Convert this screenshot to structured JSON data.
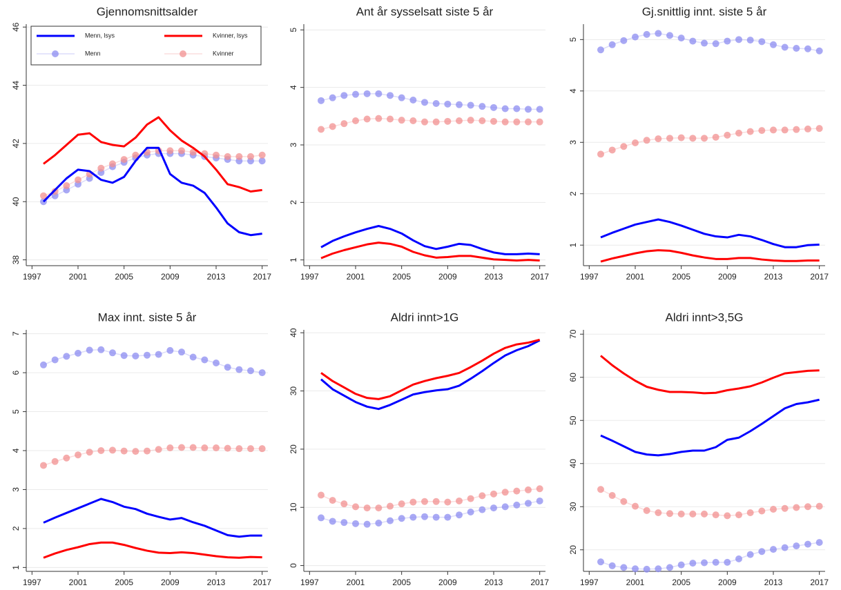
{
  "chart_data": [
    {
      "type": "line",
      "title": "Gjennomsnittsalder",
      "legend": "upper left",
      "x": [
        1998,
        1999,
        2000,
        2001,
        2002,
        2003,
        2004,
        2005,
        2006,
        2007,
        2008,
        2009,
        2010,
        2011,
        2012,
        2013,
        2014,
        2015,
        2016,
        2017
      ],
      "xlim": [
        1996.5,
        2017.5
      ],
      "xticks": [
        1997,
        2001,
        2005,
        2009,
        2013,
        2017
      ],
      "ylim": [
        37.8,
        46.1
      ],
      "yticks": [
        38,
        40,
        42,
        44,
        46
      ],
      "grid": true,
      "series": [
        {
          "name": "Menn, lsys",
          "color": "#0000ff",
          "values": [
            40.0,
            40.4,
            40.8,
            41.1,
            41.05,
            40.75,
            40.65,
            40.85,
            41.4,
            41.85,
            41.85,
            40.95,
            40.65,
            40.55,
            40.3,
            39.8,
            39.25,
            38.95,
            38.85,
            38.9
          ]
        },
        {
          "name": "Kvinner, lsys",
          "color": "#ff0000",
          "values": [
            41.3,
            41.6,
            41.95,
            42.3,
            42.35,
            42.05,
            41.95,
            41.9,
            42.2,
            42.65,
            42.9,
            42.45,
            42.1,
            41.85,
            41.55,
            41.1,
            40.6,
            40.5,
            40.35,
            40.4
          ]
        },
        {
          "name": "Menn",
          "color": "#8c8cf0",
          "marker": true,
          "values": [
            40.0,
            40.2,
            40.4,
            40.6,
            40.8,
            41.0,
            41.2,
            41.35,
            41.5,
            41.6,
            41.65,
            41.65,
            41.65,
            41.6,
            41.55,
            41.5,
            41.45,
            41.4,
            41.4,
            41.4
          ]
        },
        {
          "name": "Kvinner",
          "color": "#f29090",
          "marker": true,
          "values": [
            40.2,
            40.35,
            40.55,
            40.75,
            40.95,
            41.15,
            41.3,
            41.45,
            41.6,
            41.7,
            41.75,
            41.75,
            41.75,
            41.7,
            41.65,
            41.6,
            41.55,
            41.55,
            41.55,
            41.6
          ]
        }
      ]
    },
    {
      "type": "line",
      "title": "Ant år sysselsatt siste 5 år",
      "x": [
        1998,
        1999,
        2000,
        2001,
        2002,
        2003,
        2004,
        2005,
        2006,
        2007,
        2008,
        2009,
        2010,
        2011,
        2012,
        2013,
        2014,
        2015,
        2016,
        2017
      ],
      "xlim": [
        1996.5,
        2017.5
      ],
      "xticks": [
        1997,
        2001,
        2005,
        2009,
        2013,
        2017
      ],
      "ylim": [
        0.9,
        5.1
      ],
      "yticks": [
        1,
        2,
        3,
        4,
        5
      ],
      "grid": true,
      "series": [
        {
          "color": "#0000ff",
          "values": [
            1.22,
            1.33,
            1.41,
            1.48,
            1.54,
            1.59,
            1.54,
            1.46,
            1.34,
            1.24,
            1.19,
            1.23,
            1.28,
            1.26,
            1.19,
            1.13,
            1.1,
            1.1,
            1.11,
            1.1
          ]
        },
        {
          "color": "#ff0000",
          "values": [
            1.03,
            1.11,
            1.17,
            1.22,
            1.27,
            1.3,
            1.28,
            1.23,
            1.14,
            1.08,
            1.04,
            1.05,
            1.07,
            1.07,
            1.04,
            1.01,
            1.0,
            0.99,
            1.0,
            0.99
          ]
        },
        {
          "color": "#8c8cf0",
          "marker": true,
          "values": [
            3.77,
            3.82,
            3.86,
            3.88,
            3.89,
            3.89,
            3.86,
            3.82,
            3.78,
            3.74,
            3.72,
            3.71,
            3.7,
            3.69,
            3.67,
            3.65,
            3.63,
            3.63,
            3.62,
            3.62
          ]
        },
        {
          "color": "#f29090",
          "marker": true,
          "values": [
            3.27,
            3.32,
            3.37,
            3.42,
            3.45,
            3.46,
            3.45,
            3.43,
            3.42,
            3.4,
            3.4,
            3.41,
            3.42,
            3.43,
            3.42,
            3.41,
            3.4,
            3.4,
            3.4,
            3.4
          ]
        }
      ]
    },
    {
      "type": "line",
      "title": "Gj.snittlig innt. siste 5 år",
      "x": [
        1998,
        1999,
        2000,
        2001,
        2002,
        2003,
        2004,
        2005,
        2006,
        2007,
        2008,
        2009,
        2010,
        2011,
        2012,
        2013,
        2014,
        2015,
        2016,
        2017
      ],
      "xlim": [
        1996.5,
        2017.5
      ],
      "xticks": [
        1997,
        2001,
        2005,
        2009,
        2013,
        2017
      ],
      "ylim": [
        0.6,
        5.3
      ],
      "yticks": [
        1,
        2,
        3,
        4,
        5
      ],
      "grid": true,
      "series": [
        {
          "color": "#0000ff",
          "values": [
            1.15,
            1.24,
            1.32,
            1.4,
            1.45,
            1.5,
            1.45,
            1.38,
            1.3,
            1.22,
            1.17,
            1.15,
            1.2,
            1.17,
            1.1,
            1.02,
            0.96,
            0.96,
            1.0,
            1.01
          ]
        },
        {
          "color": "#ff0000",
          "values": [
            0.68,
            0.74,
            0.79,
            0.84,
            0.88,
            0.9,
            0.89,
            0.85,
            0.8,
            0.76,
            0.73,
            0.73,
            0.75,
            0.75,
            0.72,
            0.7,
            0.69,
            0.69,
            0.7,
            0.7
          ]
        },
        {
          "color": "#8c8cf0",
          "marker": true,
          "values": [
            4.8,
            4.9,
            4.98,
            5.05,
            5.1,
            5.12,
            5.08,
            5.03,
            4.97,
            4.93,
            4.92,
            4.97,
            5.0,
            4.99,
            4.96,
            4.9,
            4.85,
            4.83,
            4.82,
            4.78
          ]
        },
        {
          "color": "#f29090",
          "marker": true,
          "values": [
            2.77,
            2.85,
            2.92,
            2.99,
            3.04,
            3.07,
            3.08,
            3.09,
            3.08,
            3.08,
            3.1,
            3.14,
            3.18,
            3.21,
            3.23,
            3.24,
            3.24,
            3.25,
            3.26,
            3.27
          ]
        }
      ]
    },
    {
      "type": "line",
      "title": "Max innt. siste 5 år",
      "x": [
        1998,
        1999,
        2000,
        2001,
        2002,
        2003,
        2004,
        2005,
        2006,
        2007,
        2008,
        2009,
        2010,
        2011,
        2012,
        2013,
        2014,
        2015,
        2016,
        2017
      ],
      "xlim": [
        1996.5,
        2017.5
      ],
      "xticks": [
        1997,
        2001,
        2005,
        2009,
        2013,
        2017
      ],
      "ylim": [
        0.9,
        7.1
      ],
      "yticks": [
        1,
        2,
        3,
        4,
        5,
        6,
        7
      ],
      "grid": true,
      "series": [
        {
          "color": "#0000ff",
          "values": [
            2.15,
            2.28,
            2.4,
            2.52,
            2.64,
            2.76,
            2.68,
            2.56,
            2.5,
            2.38,
            2.3,
            2.23,
            2.27,
            2.16,
            2.07,
            1.95,
            1.83,
            1.79,
            1.82,
            1.82
          ]
        },
        {
          "color": "#ff0000",
          "values": [
            1.25,
            1.36,
            1.45,
            1.52,
            1.6,
            1.64,
            1.64,
            1.58,
            1.5,
            1.43,
            1.38,
            1.37,
            1.39,
            1.37,
            1.33,
            1.29,
            1.26,
            1.25,
            1.27,
            1.26
          ]
        },
        {
          "color": "#8c8cf0",
          "marker": true,
          "values": [
            6.2,
            6.33,
            6.42,
            6.5,
            6.58,
            6.59,
            6.51,
            6.44,
            6.43,
            6.45,
            6.47,
            6.57,
            6.53,
            6.4,
            6.33,
            6.25,
            6.14,
            6.08,
            6.05,
            6.0
          ]
        },
        {
          "color": "#f29090",
          "marker": true,
          "values": [
            3.62,
            3.72,
            3.81,
            3.89,
            3.96,
            4.0,
            4.01,
            3.99,
            3.98,
            3.99,
            4.03,
            4.07,
            4.08,
            4.08,
            4.07,
            4.07,
            4.06,
            4.05,
            4.05,
            4.05
          ]
        }
      ]
    },
    {
      "type": "line",
      "title": "Aldri innt>1G",
      "x": [
        1998,
        1999,
        2000,
        2001,
        2002,
        2003,
        2004,
        2005,
        2006,
        2007,
        2008,
        2009,
        2010,
        2011,
        2012,
        2013,
        2014,
        2015,
        2016,
        2017
      ],
      "xlim": [
        1996.5,
        2017.5
      ],
      "xticks": [
        1997,
        2001,
        2005,
        2009,
        2013,
        2017
      ],
      "ylim": [
        -1,
        40.5
      ],
      "yticks": [
        0,
        10,
        20,
        30,
        40
      ],
      "grid": true,
      "series": [
        {
          "color": "#0000ff",
          "values": [
            32.0,
            30.3,
            29.2,
            28.1,
            27.3,
            26.9,
            27.6,
            28.5,
            29.4,
            29.8,
            30.1,
            30.3,
            30.9,
            32.1,
            33.4,
            34.8,
            36.1,
            37.0,
            37.7,
            38.7
          ]
        },
        {
          "color": "#ff0000",
          "values": [
            33.1,
            31.7,
            30.6,
            29.5,
            28.8,
            28.6,
            29.1,
            30.1,
            31.1,
            31.7,
            32.2,
            32.6,
            33.1,
            34.1,
            35.2,
            36.4,
            37.4,
            38.0,
            38.3,
            38.8
          ]
        },
        {
          "color": "#8c8cf0",
          "marker": true,
          "values": [
            8.2,
            7.6,
            7.4,
            7.2,
            7.1,
            7.3,
            7.7,
            8.1,
            8.3,
            8.4,
            8.3,
            8.3,
            8.7,
            9.2,
            9.6,
            9.9,
            10.1,
            10.4,
            10.7,
            11.1
          ]
        },
        {
          "color": "#f29090",
          "marker": true,
          "values": [
            12.1,
            11.2,
            10.6,
            10.1,
            9.9,
            9.9,
            10.2,
            10.6,
            10.9,
            11.0,
            11.0,
            10.9,
            11.1,
            11.5,
            12.0,
            12.3,
            12.6,
            12.8,
            13.0,
            13.2
          ]
        }
      ]
    },
    {
      "type": "line",
      "title": "Aldri innt>3,5G",
      "x": [
        1998,
        1999,
        2000,
        2001,
        2002,
        2003,
        2004,
        2005,
        2006,
        2007,
        2008,
        2009,
        2010,
        2011,
        2012,
        2013,
        2014,
        2015,
        2016,
        2017
      ],
      "xlim": [
        1996.5,
        2017.5
      ],
      "xticks": [
        1997,
        2001,
        2005,
        2009,
        2013,
        2017
      ],
      "ylim": [
        15,
        71
      ],
      "yticks": [
        20,
        30,
        40,
        50,
        60,
        70
      ],
      "grid": true,
      "series": [
        {
          "color": "#0000ff",
          "values": [
            46.5,
            45.3,
            44.0,
            42.7,
            42.1,
            41.9,
            42.2,
            42.7,
            43.0,
            43.0,
            43.8,
            45.5,
            46.0,
            47.5,
            49.2,
            51.0,
            52.8,
            53.8,
            54.2,
            54.8
          ]
        },
        {
          "color": "#ff0000",
          "values": [
            65.0,
            62.8,
            60.9,
            59.2,
            57.8,
            57.1,
            56.6,
            56.6,
            56.5,
            56.3,
            56.4,
            57.0,
            57.4,
            57.9,
            58.8,
            59.9,
            60.9,
            61.2,
            61.5,
            61.6
          ]
        },
        {
          "color": "#8c8cf0",
          "marker": true,
          "values": [
            17.2,
            16.3,
            15.9,
            15.6,
            15.5,
            15.6,
            15.9,
            16.5,
            16.9,
            17.0,
            17.1,
            17.1,
            17.9,
            18.9,
            19.6,
            20.1,
            20.5,
            20.9,
            21.3,
            21.7
          ]
        },
        {
          "color": "#f29090",
          "marker": true,
          "values": [
            34.0,
            32.6,
            31.2,
            30.1,
            29.1,
            28.6,
            28.4,
            28.3,
            28.3,
            28.3,
            28.1,
            27.9,
            28.1,
            28.6,
            29.0,
            29.4,
            29.6,
            29.8,
            30.0,
            30.1
          ]
        }
      ]
    }
  ]
}
